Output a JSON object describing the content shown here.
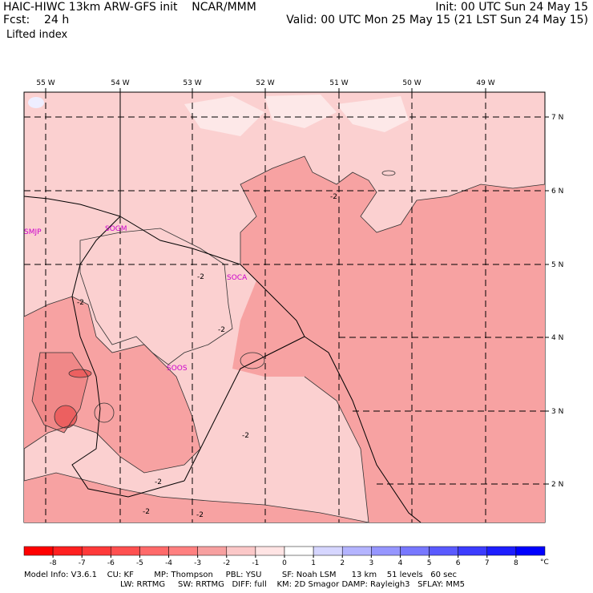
{
  "header": {
    "title": "HAIC-HIWC 13km ARW-GFS init    NCAR/MMM",
    "init": "Init: 00 UTC Sun 24 May 15",
    "fcst": "Fcst:    24 h",
    "valid": "Valid: 00 UTC Mon 25 May 15 (21 LST Sun 24 May 15)",
    "field": "Lifted index"
  },
  "map": {
    "lon_labels": [
      "55 W",
      "54 W",
      "53 W",
      "52 W",
      "51 W",
      "50 W",
      "49 W"
    ],
    "lat_labels": [
      "7 N",
      "6 N",
      "5 N",
      "4 N",
      "3 N",
      "2 N"
    ],
    "stations": [
      "SMJP",
      "SOGM",
      "SOCA",
      "SOOS"
    ],
    "contour_labels": [
      "-2",
      "-2",
      "-2",
      "-2",
      "-2",
      "-2",
      "-2",
      "-2"
    ]
  },
  "colorbar": {
    "ticks": [
      "-8",
      "-7",
      "-6",
      "-5",
      "-4",
      "-3",
      "-2",
      "-1",
      "0",
      "1",
      "2",
      "3",
      "4",
      "5",
      "6",
      "7",
      "8"
    ],
    "unit": "°C",
    "colors": [
      "#ff0000",
      "#ff2020",
      "#ff3a3a",
      "#ff5050",
      "#ff6a6a",
      "#ff8080",
      "#f7a0a0",
      "#fbc8c8",
      "#ffe4e4",
      "#ffffff",
      "#d6d6ff",
      "#b4b4ff",
      "#9696ff",
      "#7878ff",
      "#5a5aff",
      "#3c3cff",
      "#1e1eff",
      "#0000ff"
    ]
  },
  "footer": {
    "line1": "Model Info: V3.6.1    CU: KF        MP: Thompson     PBL: YSU        SF: Noah LSM      13 km    51 levels   60 sec",
    "line2": "LW: RRTMG     SW: RRTMG   DIFF: full    KM: 2D Smagor DAMP: Rayleigh3   SFLAY: MM5"
  },
  "colors": {
    "light_pink": "#fbd0d0",
    "mid_pink": "#f7a2a2",
    "dark_pink": "#f07878",
    "very_light": "#fde8e8",
    "station": "#cc00cc"
  }
}
